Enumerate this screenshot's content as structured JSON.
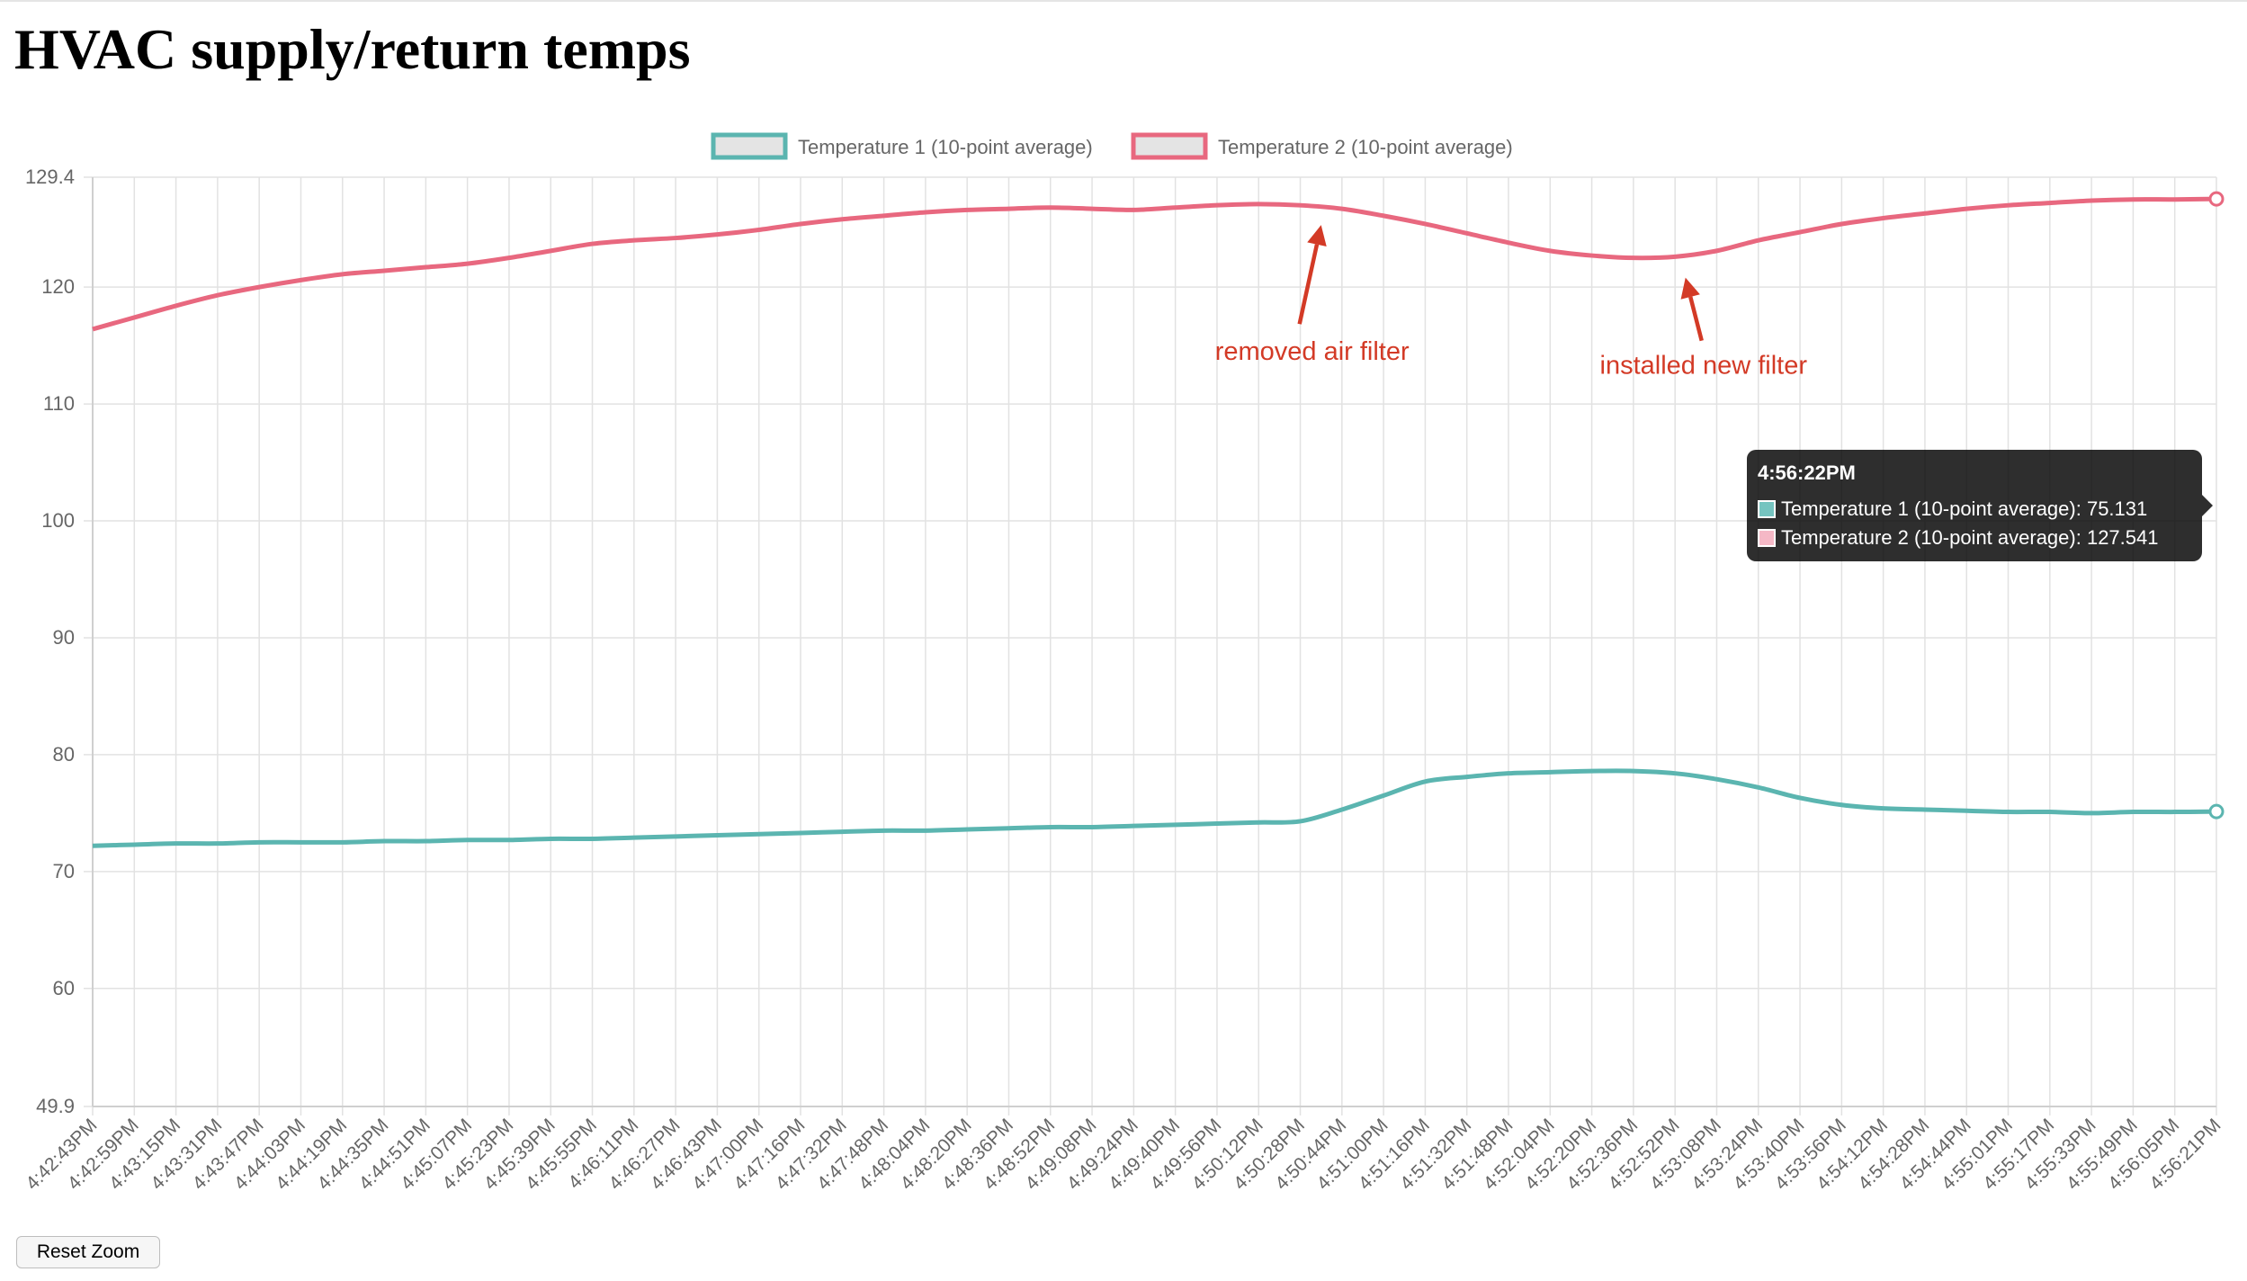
{
  "page": {
    "title": "HVAC supply/return temps"
  },
  "controls": {
    "reset_zoom_label": "Reset Zoom"
  },
  "tooltip": {
    "title": "4:56:22PM",
    "rows": [
      {
        "label": "Temperature 1 (10-point average): 75.131",
        "color": "#75c4c0"
      },
      {
        "label": "Temperature 2 (10-point average): 127.541",
        "color": "#f5b8c6"
      }
    ]
  },
  "chart_data": {
    "type": "line",
    "title": "",
    "xlabel": "",
    "ylabel": "",
    "ylim": [
      49.9,
      129.4
    ],
    "yticks": [
      "129.4",
      "120",
      "110",
      "100",
      "90",
      "80",
      "70",
      "60",
      "49.9"
    ],
    "legend_position": "top",
    "grid": true,
    "x": [
      "4:42:43PM",
      "4:42:59PM",
      "4:43:15PM",
      "4:43:31PM",
      "4:43:47PM",
      "4:44:03PM",
      "4:44:19PM",
      "4:44:35PM",
      "4:44:51PM",
      "4:45:07PM",
      "4:45:23PM",
      "4:45:39PM",
      "4:45:55PM",
      "4:46:11PM",
      "4:46:27PM",
      "4:46:43PM",
      "4:47:00PM",
      "4:47:16PM",
      "4:47:32PM",
      "4:47:48PM",
      "4:48:04PM",
      "4:48:20PM",
      "4:48:36PM",
      "4:48:52PM",
      "4:49:08PM",
      "4:49:24PM",
      "4:49:40PM",
      "4:49:56PM",
      "4:50:12PM",
      "4:50:28PM",
      "4:50:44PM",
      "4:51:00PM",
      "4:51:16PM",
      "4:51:32PM",
      "4:51:48PM",
      "4:52:04PM",
      "4:52:20PM",
      "4:52:36PM",
      "4:52:52PM",
      "4:53:08PM",
      "4:53:24PM",
      "4:53:40PM",
      "4:53:56PM",
      "4:54:12PM",
      "4:54:28PM",
      "4:54:44PM",
      "4:55:01PM",
      "4:55:17PM",
      "4:55:33PM",
      "4:55:49PM",
      "4:56:05PM",
      "4:56:21PM"
    ],
    "series": [
      {
        "name": "Temperature 1 (10-point average)",
        "color": "#5bb5b0",
        "values": [
          72.2,
          72.3,
          72.4,
          72.4,
          72.5,
          72.5,
          72.5,
          72.6,
          72.6,
          72.7,
          72.7,
          72.8,
          72.8,
          72.9,
          73.0,
          73.1,
          73.2,
          73.3,
          73.4,
          73.5,
          73.5,
          73.6,
          73.7,
          73.8,
          73.8,
          73.9,
          74.0,
          74.1,
          74.2,
          74.3,
          75.3,
          76.5,
          77.7,
          78.1,
          78.4,
          78.5,
          78.6,
          78.6,
          78.4,
          77.9,
          77.2,
          76.3,
          75.7,
          75.4,
          75.3,
          75.2,
          75.1,
          75.1,
          75.0,
          75.1,
          75.1,
          75.131
        ]
      },
      {
        "name": "Temperature 2 (10-point average)",
        "color": "#e8687f",
        "values": [
          116.4,
          117.4,
          118.4,
          119.3,
          120.0,
          120.6,
          121.1,
          121.4,
          121.7,
          122.0,
          122.5,
          123.1,
          123.7,
          124.0,
          124.2,
          124.5,
          124.9,
          125.4,
          125.8,
          126.1,
          126.4,
          126.6,
          126.7,
          126.8,
          126.7,
          126.6,
          126.8,
          127.0,
          127.1,
          127.0,
          126.7,
          126.1,
          125.4,
          124.6,
          123.8,
          123.1,
          122.7,
          122.5,
          122.6,
          123.1,
          124.0,
          124.7,
          125.4,
          125.9,
          126.3,
          126.7,
          127.0,
          127.2,
          127.4,
          127.5,
          127.5,
          127.541
        ]
      }
    ],
    "annotations": [
      {
        "text": "removed air filter",
        "color": "#d33a26",
        "x": "4:50:36PM",
        "y": 127.0
      },
      {
        "text": "installed new filter",
        "color": "#d33a26",
        "x": "4:52:56PM",
        "y": 122.5
      }
    ]
  }
}
